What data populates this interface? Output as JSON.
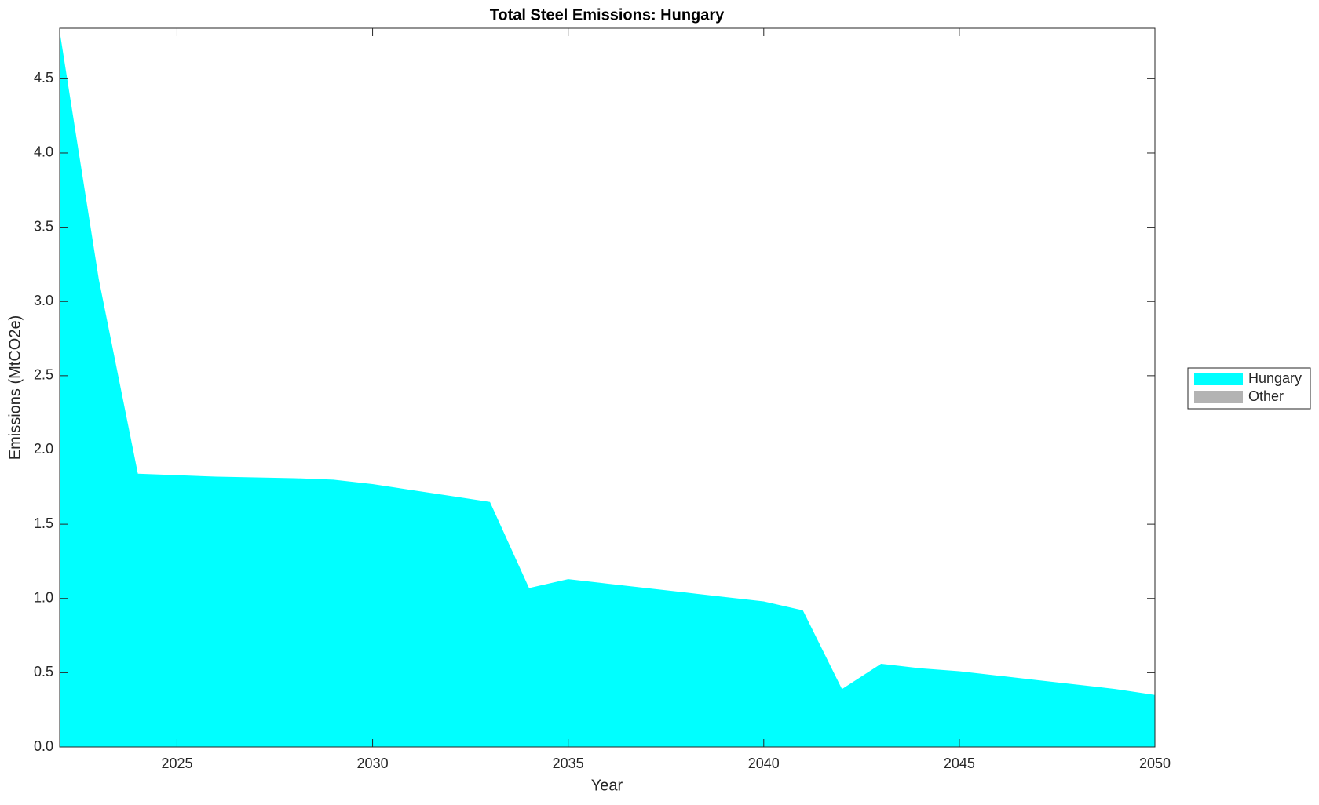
{
  "chart_data": {
    "type": "stacked_area",
    "title": "Total Steel Emissions: Hungary",
    "x_label": "Year",
    "y_label": "Emissions (MtCO2e)",
    "x": [
      2022,
      2023,
      2024,
      2025,
      2026,
      2027,
      2028,
      2029,
      2030,
      2031,
      2032,
      2033,
      2034,
      2035,
      2036,
      2037,
      2038,
      2039,
      2040,
      2041,
      2042,
      2043,
      2044,
      2045,
      2046,
      2047,
      2048,
      2049,
      2050
    ],
    "series": [
      {
        "name": "Hungary",
        "color": "#00ffff",
        "values": [
          4.82,
          3.15,
          1.84,
          1.83,
          1.82,
          1.815,
          1.81,
          1.8,
          1.77,
          1.73,
          1.69,
          1.65,
          1.07,
          1.13,
          1.1,
          1.07,
          1.04,
          1.01,
          0.98,
          0.92,
          0.39,
          0.56,
          0.53,
          0.51,
          0.48,
          0.45,
          0.42,
          0.39,
          0.35
        ]
      },
      {
        "name": "Other",
        "color": "#b3b3b3",
        "values": [
          0,
          0,
          0,
          0,
          0,
          0,
          0,
          0,
          0,
          0,
          0,
          0,
          0,
          0,
          0,
          0,
          0,
          0,
          0,
          0,
          0,
          0,
          0,
          0,
          0,
          0,
          0,
          0,
          0
        ]
      }
    ],
    "xlim": [
      2022,
      2050
    ],
    "xticks": [
      2025,
      2030,
      2035,
      2040,
      2045,
      2050
    ],
    "ylim": [
      0,
      4.84
    ],
    "yticks": [
      {
        "value": 0,
        "label": "0.0"
      },
      0.5,
      {
        "value": 1,
        "label": "1.0"
      },
      1.5,
      {
        "value": 2,
        "label": "2.0"
      },
      2.5,
      {
        "value": 3,
        "label": "3.0"
      },
      3.5,
      {
        "value": 4,
        "label": "4.0"
      },
      4.5
    ],
    "legend": "right"
  }
}
